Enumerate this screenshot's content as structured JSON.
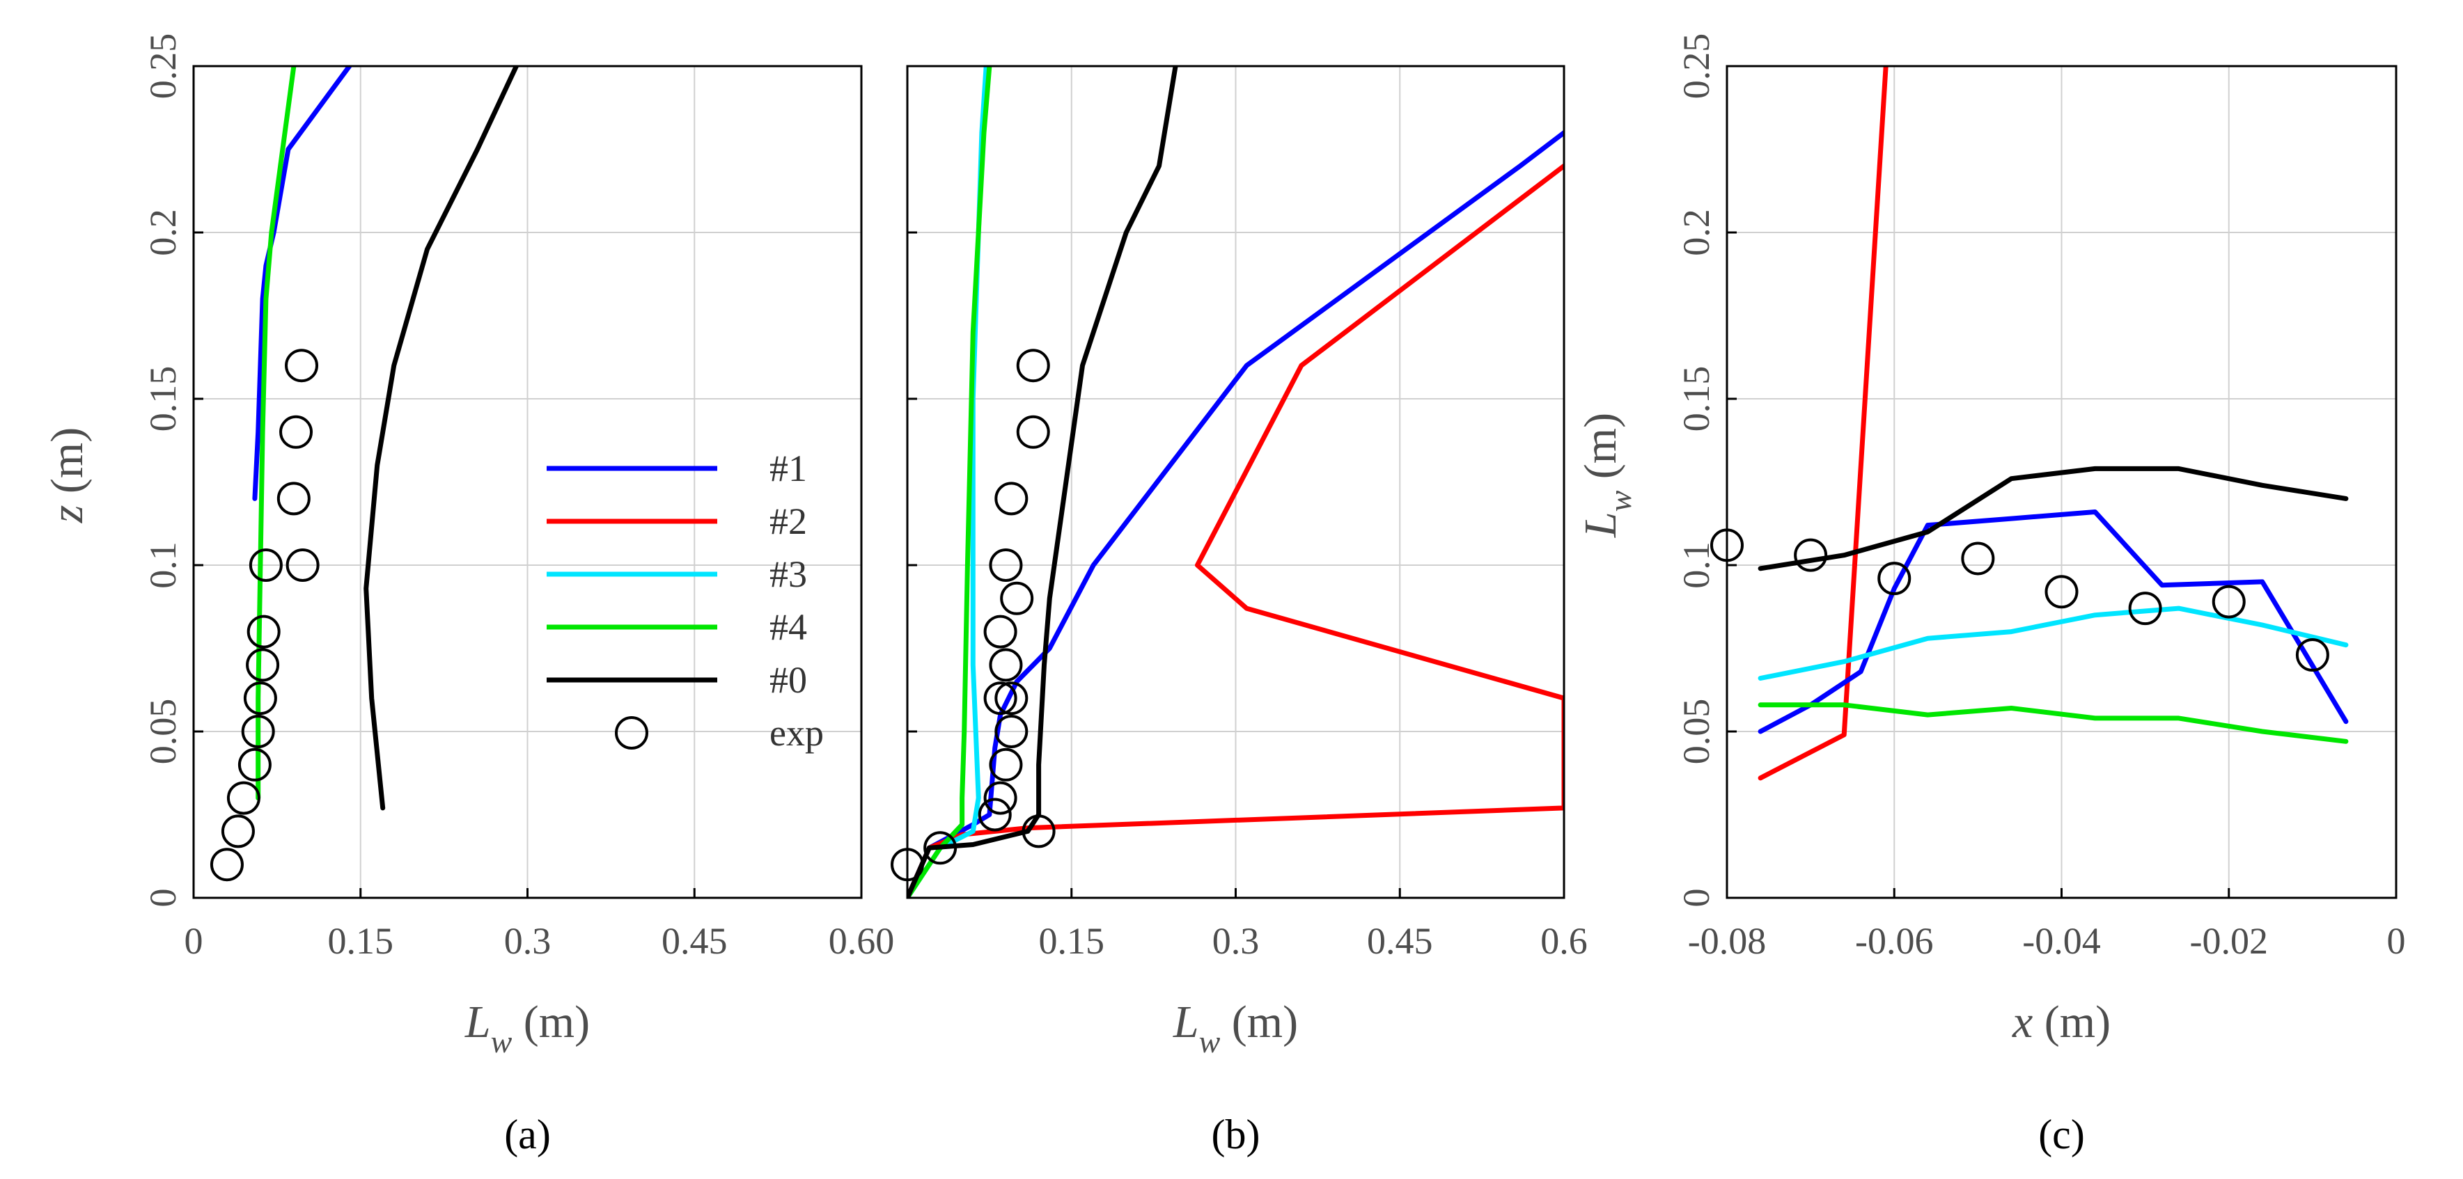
{
  "chart_data": [
    {
      "type": "line",
      "panel_label": "(a)",
      "xlabel": "L_w (m)",
      "xlabel_main": "L",
      "xlabel_sub": "w",
      "xlabel_unit": " (m)",
      "ylabel": "z (m)",
      "ylabel_main": "z",
      "ylabel_unit": " (m)",
      "xlim": [
        0,
        0.6
      ],
      "ylim": [
        0,
        0.25
      ],
      "xticks": [
        0,
        0.15,
        0.3,
        0.45,
        0.6
      ],
      "xtick_labels": [
        "0",
        "0.15",
        "0.3",
        "0.45",
        "0.60"
      ],
      "yticks": [
        0,
        0.05,
        0.1,
        0.15,
        0.2,
        0.25
      ],
      "ytick_labels": [
        "0",
        "0.05",
        "0.1",
        "0.15",
        "0.2",
        "0.25"
      ],
      "grid": true,
      "legend": {
        "location": "right-center",
        "entries": [
          {
            "label": "#1",
            "color": "#0000ff",
            "kind": "line"
          },
          {
            "label": "#2",
            "color": "#ff0000",
            "kind": "line"
          },
          {
            "label": "#3",
            "color": "#00e5ff",
            "kind": "line"
          },
          {
            "label": "#4",
            "color": "#00e600",
            "kind": "line"
          },
          {
            "label": "#0",
            "color": "#000000",
            "kind": "line"
          },
          {
            "label": "exp",
            "color": "#000000",
            "kind": "marker"
          }
        ]
      },
      "series": [
        {
          "name": "#1",
          "color": "#0000ff",
          "x": [
            0.055,
            0.058,
            0.06,
            0.062,
            0.065,
            0.072,
            0.085,
            0.14
          ],
          "y": [
            0.12,
            0.14,
            0.16,
            0.18,
            0.19,
            0.2,
            0.225,
            0.25
          ]
        },
        {
          "name": "#4",
          "color": "#00e600",
          "x": [
            0.058,
            0.058,
            0.06,
            0.062,
            0.065,
            0.07,
            0.078,
            0.09
          ],
          "y": [
            0.03,
            0.06,
            0.1,
            0.14,
            0.18,
            0.2,
            0.22,
            0.25
          ]
        },
        {
          "name": "#0",
          "color": "#000000",
          "x": [
            0.17,
            0.16,
            0.155,
            0.165,
            0.18,
            0.21,
            0.255,
            0.29
          ],
          "y": [
            0.027,
            0.06,
            0.093,
            0.13,
            0.16,
            0.195,
            0.225,
            0.25
          ]
        }
      ],
      "exp": {
        "x": [
          0.03,
          0.04,
          0.045,
          0.055,
          0.058,
          0.06,
          0.062,
          0.063,
          0.065,
          0.09,
          0.092,
          0.097,
          0.098
        ],
        "y": [
          0.01,
          0.02,
          0.03,
          0.04,
          0.05,
          0.06,
          0.07,
          0.08,
          0.1,
          0.12,
          0.14,
          0.16,
          0.1
        ]
      }
    },
    {
      "type": "line",
      "panel_label": "(b)",
      "xlabel": "L_w (m)",
      "xlabel_main": "L",
      "xlabel_sub": "w",
      "xlabel_unit": " (m)",
      "xlim": [
        0,
        0.6
      ],
      "ylim": [
        0,
        0.25
      ],
      "xticks": [
        0.15,
        0.3,
        0.45,
        0.6
      ],
      "xtick_labels": [
        "0.15",
        "0.3",
        "0.45",
        "0.6"
      ],
      "yticks": [
        0,
        0.05,
        0.1,
        0.15,
        0.2,
        0.25
      ],
      "grid": true,
      "series": [
        {
          "name": "#1",
          "color": "#0000ff",
          "x": [
            0,
            0.02,
            0.06,
            0.075,
            0.08,
            0.085,
            0.1,
            0.13,
            0.17,
            0.31,
            0.56,
            0.6
          ],
          "y": [
            0,
            0.015,
            0.022,
            0.025,
            0.045,
            0.055,
            0.065,
            0.075,
            0.1,
            0.16,
            0.22,
            0.23
          ]
        },
        {
          "name": "#2",
          "color": "#ff0000",
          "x": [
            0,
            0.02,
            0.05,
            0.11,
            0.6,
            0.6,
            0.31,
            0.265,
            0.36,
            0.58,
            0.6
          ],
          "y": [
            0,
            0.015,
            0.019,
            0.021,
            0.027,
            0.06,
            0.087,
            0.1,
            0.16,
            0.215,
            0.22
          ]
        },
        {
          "name": "#3",
          "color": "#00e5ff",
          "x": [
            0,
            0.03,
            0.06,
            0.065,
            0.06,
            0.06,
            0.065,
            0.068,
            0.072
          ],
          "y": [
            0,
            0.015,
            0.02,
            0.03,
            0.07,
            0.15,
            0.2,
            0.23,
            0.25
          ]
        },
        {
          "name": "#4",
          "color": "#00e600",
          "x": [
            0,
            0.03,
            0.05,
            0.05,
            0.052,
            0.055,
            0.06,
            0.07,
            0.075
          ],
          "y": [
            0,
            0.015,
            0.022,
            0.03,
            0.05,
            0.1,
            0.17,
            0.23,
            0.25
          ]
        },
        {
          "name": "#0",
          "color": "#000000",
          "x": [
            0,
            0.02,
            0.06,
            0.11,
            0.12,
            0.12,
            0.125,
            0.13,
            0.16,
            0.2,
            0.23,
            0.245
          ],
          "y": [
            0,
            0.015,
            0.016,
            0.02,
            0.025,
            0.04,
            0.07,
            0.09,
            0.16,
            0.2,
            0.22,
            0.25
          ]
        }
      ],
      "exp": {
        "x": [
          0,
          0.03,
          0.08,
          0.085,
          0.09,
          0.095,
          0.095,
          0.09,
          0.085,
          0.085,
          0.09,
          0.095,
          0.1,
          0.115,
          0.115,
          0.12
        ],
        "y": [
          0.01,
          0.015,
          0.025,
          0.03,
          0.04,
          0.05,
          0.06,
          0.07,
          0.08,
          0.06,
          0.1,
          0.12,
          0.09,
          0.14,
          0.16,
          0.02
        ]
      }
    },
    {
      "type": "line",
      "panel_label": "(c)",
      "xlabel": "x (m)",
      "xlabel_main": "x",
      "xlabel_unit": " (m)",
      "ylabel": "L_w (m)",
      "ylabel_main": "L",
      "ylabel_sub": "w",
      "ylabel_unit": " (m)",
      "xlim": [
        -0.08,
        0
      ],
      "ylim": [
        0,
        0.25
      ],
      "xticks": [
        -0.08,
        -0.06,
        -0.04,
        -0.02,
        0
      ],
      "xtick_labels": [
        "-0.08",
        "-0.06",
        "-0.04",
        "-0.02",
        "0"
      ],
      "yticks": [
        0,
        0.05,
        0.1,
        0.15,
        0.2,
        0.25
      ],
      "ytick_labels": [
        "0",
        "0.05",
        "0.1",
        "0.15",
        "0.2",
        "0.25"
      ],
      "grid": true,
      "series": [
        {
          "name": "#2",
          "color": "#ff0000",
          "x": [
            -0.076,
            -0.066,
            -0.061
          ],
          "y": [
            0.036,
            0.049,
            0.25
          ]
        },
        {
          "name": "#1",
          "color": "#0000ff",
          "x": [
            -0.076,
            -0.07,
            -0.064,
            -0.06,
            -0.056,
            -0.046,
            -0.036,
            -0.028,
            -0.016,
            -0.006
          ],
          "y": [
            0.05,
            0.058,
            0.068,
            0.093,
            0.112,
            0.114,
            0.116,
            0.094,
            0.095,
            0.053
          ]
        },
        {
          "name": "#3",
          "color": "#00e5ff",
          "x": [
            -0.076,
            -0.066,
            -0.056,
            -0.046,
            -0.036,
            -0.026,
            -0.016,
            -0.006
          ],
          "y": [
            0.066,
            0.071,
            0.078,
            0.08,
            0.085,
            0.087,
            0.082,
            0.076
          ]
        },
        {
          "name": "#4",
          "color": "#00e600",
          "x": [
            -0.076,
            -0.066,
            -0.056,
            -0.046,
            -0.036,
            -0.026,
            -0.016,
            -0.006
          ],
          "y": [
            0.058,
            0.058,
            0.055,
            0.057,
            0.054,
            0.054,
            0.05,
            0.047
          ]
        },
        {
          "name": "#0",
          "color": "#000000",
          "x": [
            -0.076,
            -0.066,
            -0.056,
            -0.046,
            -0.036,
            -0.026,
            -0.016,
            -0.006
          ],
          "y": [
            0.099,
            0.103,
            0.11,
            0.126,
            0.129,
            0.129,
            0.124,
            0.12
          ]
        }
      ],
      "exp": {
        "x": [
          -0.08,
          -0.07,
          -0.06,
          -0.05,
          -0.04,
          -0.03,
          -0.02,
          -0.01
        ],
        "y": [
          0.106,
          0.103,
          0.096,
          0.102,
          0.092,
          0.087,
          0.089,
          0.073
        ]
      }
    }
  ]
}
